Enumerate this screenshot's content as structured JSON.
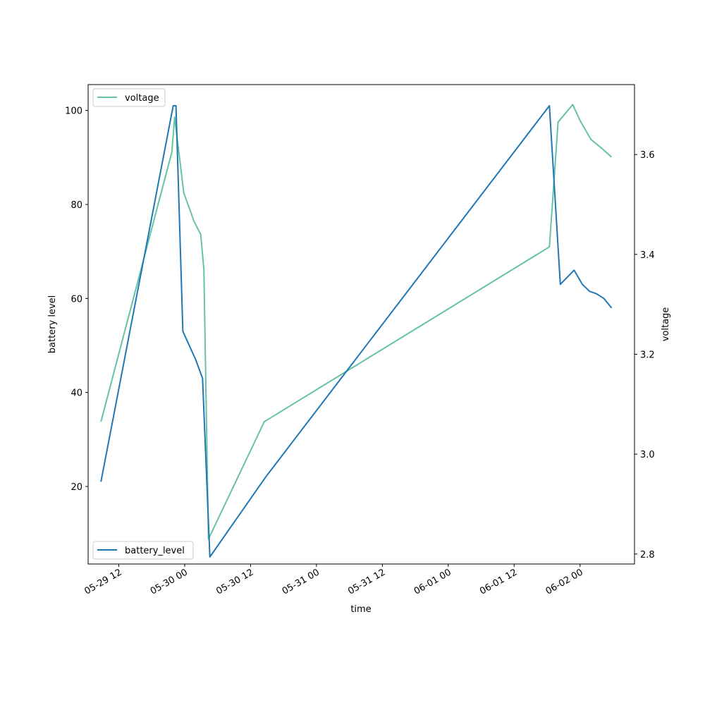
{
  "chart_data": {
    "type": "line",
    "xlabel": "time",
    "ylabel_left": "battery level",
    "ylabel_right": "voltage",
    "x_ticks": [
      "05-29 12",
      "05-30 00",
      "05-30 12",
      "05-31 00",
      "05-31 12",
      "06-01 00",
      "06-01 12",
      "06-02 00"
    ],
    "xlim": [
      "2024-05-29T06:25:00",
      "2024-06-02T09:55:00"
    ],
    "ylim_left": [
      3.5,
      105.5
    ],
    "yticks_left": [
      20,
      40,
      60,
      80,
      100
    ],
    "ylim_right": [
      2.78,
      3.74
    ],
    "yticks_right": [
      2.8,
      3.0,
      3.2,
      3.4,
      3.6
    ],
    "grid": false,
    "series": [
      {
        "name": "battery_level",
        "axis": "left",
        "color": "#1f77b4",
        "legend": "lower-left",
        "points": [
          [
            "2024-05-29T08:45:00",
            21
          ],
          [
            "2024-05-29T21:55:00",
            101
          ],
          [
            "2024-05-29T22:25:00",
            101
          ],
          [
            "2024-05-29T23:40:00",
            53
          ],
          [
            "2024-05-30T02:00:00",
            47
          ],
          [
            "2024-05-30T03:15:00",
            43
          ],
          [
            "2024-05-30T04:35:00",
            5
          ],
          [
            "2024-05-30T14:45:00",
            22
          ],
          [
            "2024-06-01T18:25:00",
            101
          ],
          [
            "2024-06-01T20:25:00",
            63
          ],
          [
            "2024-06-01T22:55:00",
            66
          ],
          [
            "2024-06-02T00:25:00",
            63
          ],
          [
            "2024-06-02T01:45:00",
            61.5
          ],
          [
            "2024-06-02T03:00:00",
            61
          ],
          [
            "2024-06-02T04:20:00",
            60
          ],
          [
            "2024-06-02T05:45:00",
            58
          ]
        ]
      },
      {
        "name": "voltage",
        "axis": "right",
        "color": "#66c2a5",
        "legend": "upper-left",
        "points": [
          [
            "2024-05-29T08:45:00",
            3.065
          ],
          [
            "2024-05-29T21:40:00",
            3.605
          ],
          [
            "2024-05-29T22:10:00",
            3.675
          ],
          [
            "2024-05-29T23:50:00",
            3.523
          ],
          [
            "2024-05-30T01:45:00",
            3.465
          ],
          [
            "2024-05-30T02:55:00",
            3.44
          ],
          [
            "2024-05-30T03:30:00",
            3.37
          ],
          [
            "2024-05-30T04:20:00",
            2.83
          ],
          [
            "2024-05-30T14:30:00",
            3.065
          ],
          [
            "2024-06-01T18:25:00",
            3.415
          ],
          [
            "2024-06-01T20:00:00",
            3.665
          ],
          [
            "2024-06-01T22:40:00",
            3.7
          ],
          [
            "2024-06-02T00:00:00",
            3.668
          ],
          [
            "2024-06-02T02:00:00",
            3.63
          ],
          [
            "2024-06-02T04:00:00",
            3.612
          ],
          [
            "2024-06-02T05:45:00",
            3.595
          ]
        ]
      }
    ]
  }
}
